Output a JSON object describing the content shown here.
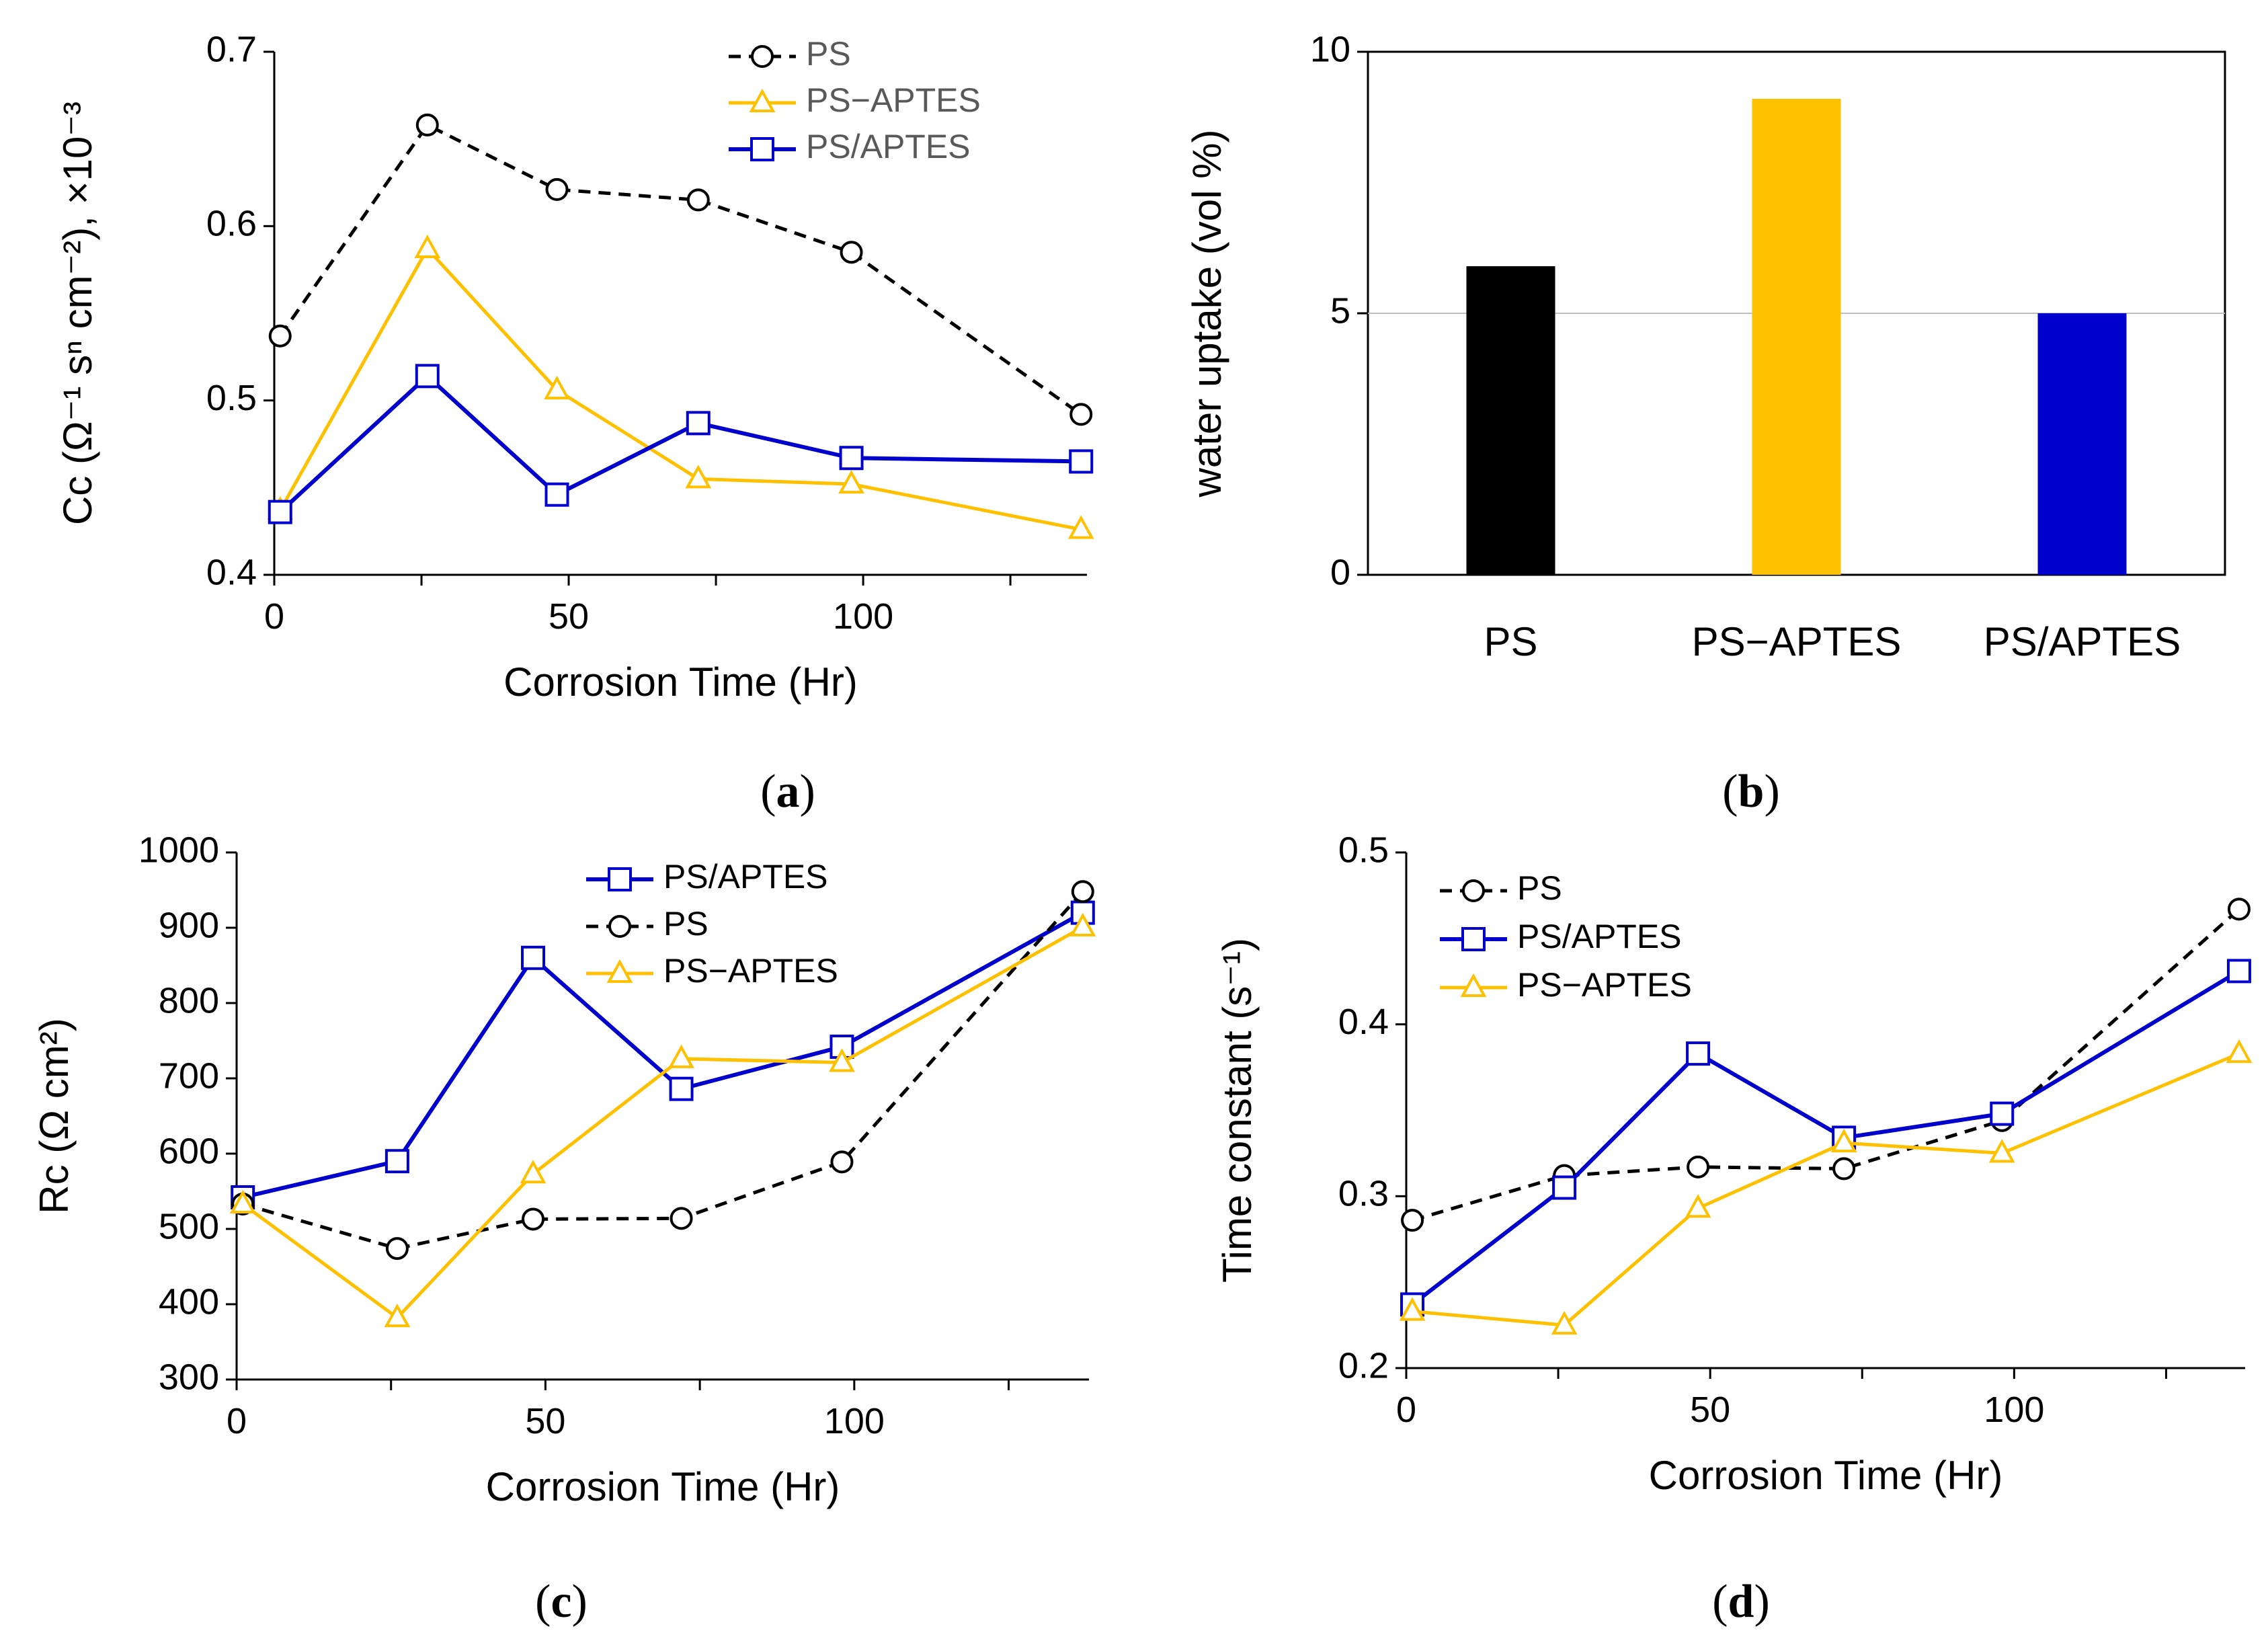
{
  "colors": {
    "PS": "#000000",
    "PS-APTES": "#FFC000",
    "PS/APTES": "#0000CC",
    "legend_text_a": "#595959",
    "legend_text": "#000000"
  },
  "chart_data": [
    {
      "id": "a",
      "type": "line",
      "caption_open": "(",
      "caption_label": "a",
      "caption_close": ")",
      "xlabel": "Corrosion Time (Hr)",
      "ylabel": "Cc (Ω⁻¹ sⁿ cm⁻²), ×10⁻³",
      "xlim": [
        0,
        138
      ],
      "ylim": [
        0.4,
        0.7
      ],
      "xticks": [
        0,
        50,
        100
      ],
      "yticks": [
        "0.4",
        "0.5",
        "0.6",
        "0.7"
      ],
      "legend": [
        "PS",
        "PS−APTES",
        "PS/APTES"
      ],
      "series": [
        {
          "name": "PS",
          "style": "PS",
          "x": [
            1,
            26,
            48,
            72,
            98,
            137
          ],
          "values": [
            0.537,
            0.658,
            0.621,
            0.615,
            0.585,
            0.492
          ]
        },
        {
          "name": "PS−APTES",
          "style": "PS-APTES",
          "x": [
            1,
            26,
            48,
            72,
            98,
            137
          ],
          "values": [
            0.437,
            0.587,
            0.506,
            0.455,
            0.452,
            0.426
          ]
        },
        {
          "name": "PS/APTES",
          "style": "PS/APTES",
          "x": [
            1,
            26,
            48,
            72,
            98,
            137
          ],
          "values": [
            0.436,
            0.514,
            0.446,
            0.487,
            0.467,
            0.465
          ]
        }
      ]
    },
    {
      "id": "b",
      "type": "bar",
      "caption_open": "(",
      "caption_label": "b",
      "caption_close": ")",
      "xlabel": "",
      "ylabel": "water uptake (vol %)",
      "ylim": [
        0,
        10
      ],
      "yticks": [
        "0",
        "5",
        "10"
      ],
      "gridline": 5,
      "categories": [
        "PS",
        "PS−APTES",
        "PS/APTES"
      ],
      "values": [
        5.9,
        9.1,
        5.0
      ]
    },
    {
      "id": "c",
      "type": "line",
      "caption_open": "(",
      "caption_label": "c",
      "caption_close": ")",
      "xlabel": "Corrosion Time (Hr)",
      "ylabel": "Rc (Ω cm²)",
      "xlim": [
        0,
        138
      ],
      "ylim": [
        300,
        1000
      ],
      "xticks": [
        0,
        50,
        100
      ],
      "yticks": [
        "300",
        "400",
        "500",
        "600",
        "700",
        "800",
        "900",
        "1000"
      ],
      "legend": [
        "PS/APTES",
        "PS",
        "PS−APTES"
      ],
      "series": [
        {
          "name": "PS/APTES",
          "style": "PS/APTES",
          "x": [
            1,
            26,
            48,
            72,
            98,
            137
          ],
          "values": [
            542,
            590,
            860,
            686,
            742,
            920
          ]
        },
        {
          "name": "PS",
          "style": "PS",
          "x": [
            1,
            26,
            48,
            72,
            98,
            137
          ],
          "values": [
            533,
            474,
            513,
            514,
            589,
            948
          ]
        },
        {
          "name": "PS−APTES",
          "style": "PS-APTES",
          "x": [
            1,
            26,
            48,
            72,
            98,
            137
          ],
          "values": [
            533,
            382,
            573,
            726,
            721,
            901
          ]
        }
      ]
    },
    {
      "id": "d",
      "type": "line",
      "caption_open": "(",
      "caption_label": "d",
      "caption_close": ")",
      "xlabel": "Corrosion Time (Hr)",
      "ylabel": "Time constant (s⁻¹)",
      "xlim": [
        0,
        138
      ],
      "ylim": [
        0.2,
        0.5
      ],
      "xticks": [
        0,
        50,
        100
      ],
      "yticks": [
        "0.2",
        "0.3",
        "0.4",
        "0.5"
      ],
      "legend": [
        "PS",
        "PS/APTES",
        "PS−APTES"
      ],
      "series": [
        {
          "name": "PS",
          "style": "PS",
          "x": [
            1,
            26,
            48,
            72,
            98,
            137
          ],
          "values": [
            0.286,
            0.312,
            0.317,
            0.316,
            0.344,
            0.467
          ]
        },
        {
          "name": "PS/APTES",
          "style": "PS/APTES",
          "x": [
            1,
            26,
            48,
            72,
            98,
            137
          ],
          "values": [
            0.237,
            0.305,
            0.383,
            0.334,
            0.348,
            0.431
          ]
        },
        {
          "name": "PS−APTES",
          "style": "PS-APTES",
          "x": [
            1,
            26,
            48,
            72,
            98,
            137
          ],
          "values": [
            0.233,
            0.225,
            0.293,
            0.331,
            0.325,
            0.383
          ]
        }
      ]
    }
  ]
}
